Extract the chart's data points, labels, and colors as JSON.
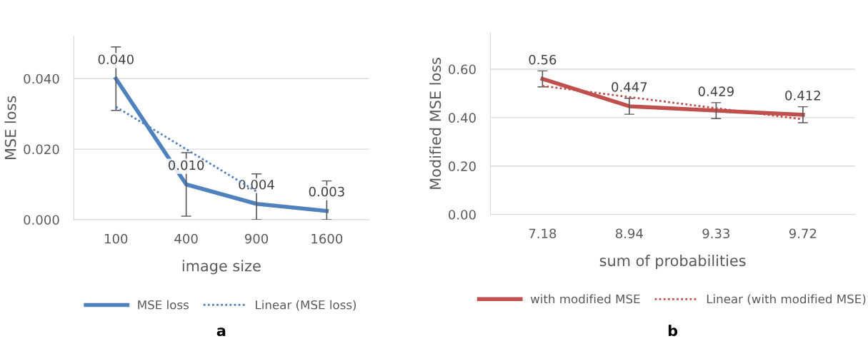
{
  "chart_data": [
    {
      "type": "line",
      "xlabel": "image size",
      "ylabel": "MSE loss",
      "categories": [
        "100",
        "400",
        "900",
        "1600"
      ],
      "series": [
        {
          "name": "MSE loss",
          "color": "#4f81bd",
          "values": [
            0.04,
            0.01,
            0.0045,
            0.0025
          ],
          "line_style": "solid",
          "errors": [
            0.009,
            0.009,
            [
              0,
              0.013
            ],
            [
              0,
              0.011
            ]
          ],
          "value_labels": [
            "0.040",
            "0.010",
            "0.004",
            "0.003"
          ]
        },
        {
          "name": "Linear (MSE loss)",
          "color": "#4f81bd",
          "values": [
            0.032,
            0.02,
            0.008,
            null
          ],
          "line_style": "dotted"
        }
      ],
      "ylim": [
        0,
        0.052
      ],
      "yticks": [
        {
          "value": 0,
          "label": "0.000"
        },
        {
          "value": 0.02,
          "label": "0.020"
        },
        {
          "value": 0.04,
          "label": "0.040"
        }
      ],
      "grid": "y",
      "legend": "bottom",
      "annotations": [
        "a"
      ]
    },
    {
      "type": "line",
      "xlabel": "sum of probabilities",
      "ylabel": "Modified MSE loss",
      "categories": [
        "7.18",
        "8.94",
        "9.33",
        "9.72"
      ],
      "series": [
        {
          "name": "with modified MSE",
          "color": "#c0504d",
          "values": [
            0.56,
            0.447,
            0.429,
            0.412
          ],
          "line_style": "solid",
          "errors": [
            0.033,
            0.033,
            0.033,
            0.033
          ],
          "value_labels": [
            "0.56",
            "0.447",
            "0.429",
            "0.412"
          ]
        },
        {
          "name": "Linear (with modified MSE)",
          "color": "#c0504d",
          "values": [
            0.531,
            0.485,
            0.439,
            0.393
          ],
          "line_style": "dotted"
        }
      ],
      "ylim": [
        0,
        0.75
      ],
      "yticks": [
        {
          "value": 0,
          "label": "0.00"
        },
        {
          "value": 0.2,
          "label": "0.20"
        },
        {
          "value": 0.4,
          "label": "0.40"
        },
        {
          "value": 0.6,
          "label": "0.60"
        }
      ],
      "grid": "y",
      "legend": "bottom",
      "annotations": [
        "b"
      ]
    }
  ]
}
